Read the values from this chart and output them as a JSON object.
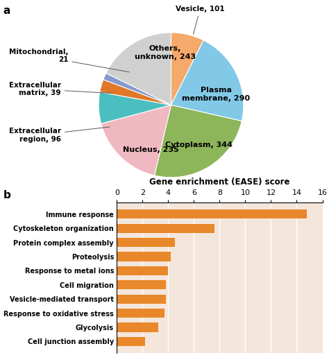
{
  "pie_values": [
    101,
    290,
    344,
    235,
    96,
    39,
    21,
    243
  ],
  "pie_colors": [
    "#F5A96A",
    "#82C9E8",
    "#8DB55A",
    "#F0B8C0",
    "#4BBFBF",
    "#E07828",
    "#8899CC",
    "#D0D0D0"
  ],
  "bar_categories": [
    "Immune response",
    "Cytoskeleton organization",
    "Protein complex assembly",
    "Proteolysis",
    "Response to metal ions",
    "Cell migration",
    "Vesicle-mediated transport",
    "Response to oxidative stress",
    "Glycolysis",
    "Cell junction assembly"
  ],
  "bar_values": [
    14.8,
    7.6,
    4.5,
    4.2,
    4.0,
    3.8,
    3.8,
    3.7,
    3.2,
    2.2
  ],
  "bar_color": "#E8882A",
  "bar_bg_color": "#F5E6DC",
  "bar_xlabel": "Gene enrichment (EASE) score",
  "bar_xlim": [
    0,
    16
  ],
  "bar_xticks": [
    0,
    2,
    4,
    6,
    8,
    10,
    12,
    14,
    16
  ],
  "panel_a_label": "a",
  "panel_b_label": "b"
}
